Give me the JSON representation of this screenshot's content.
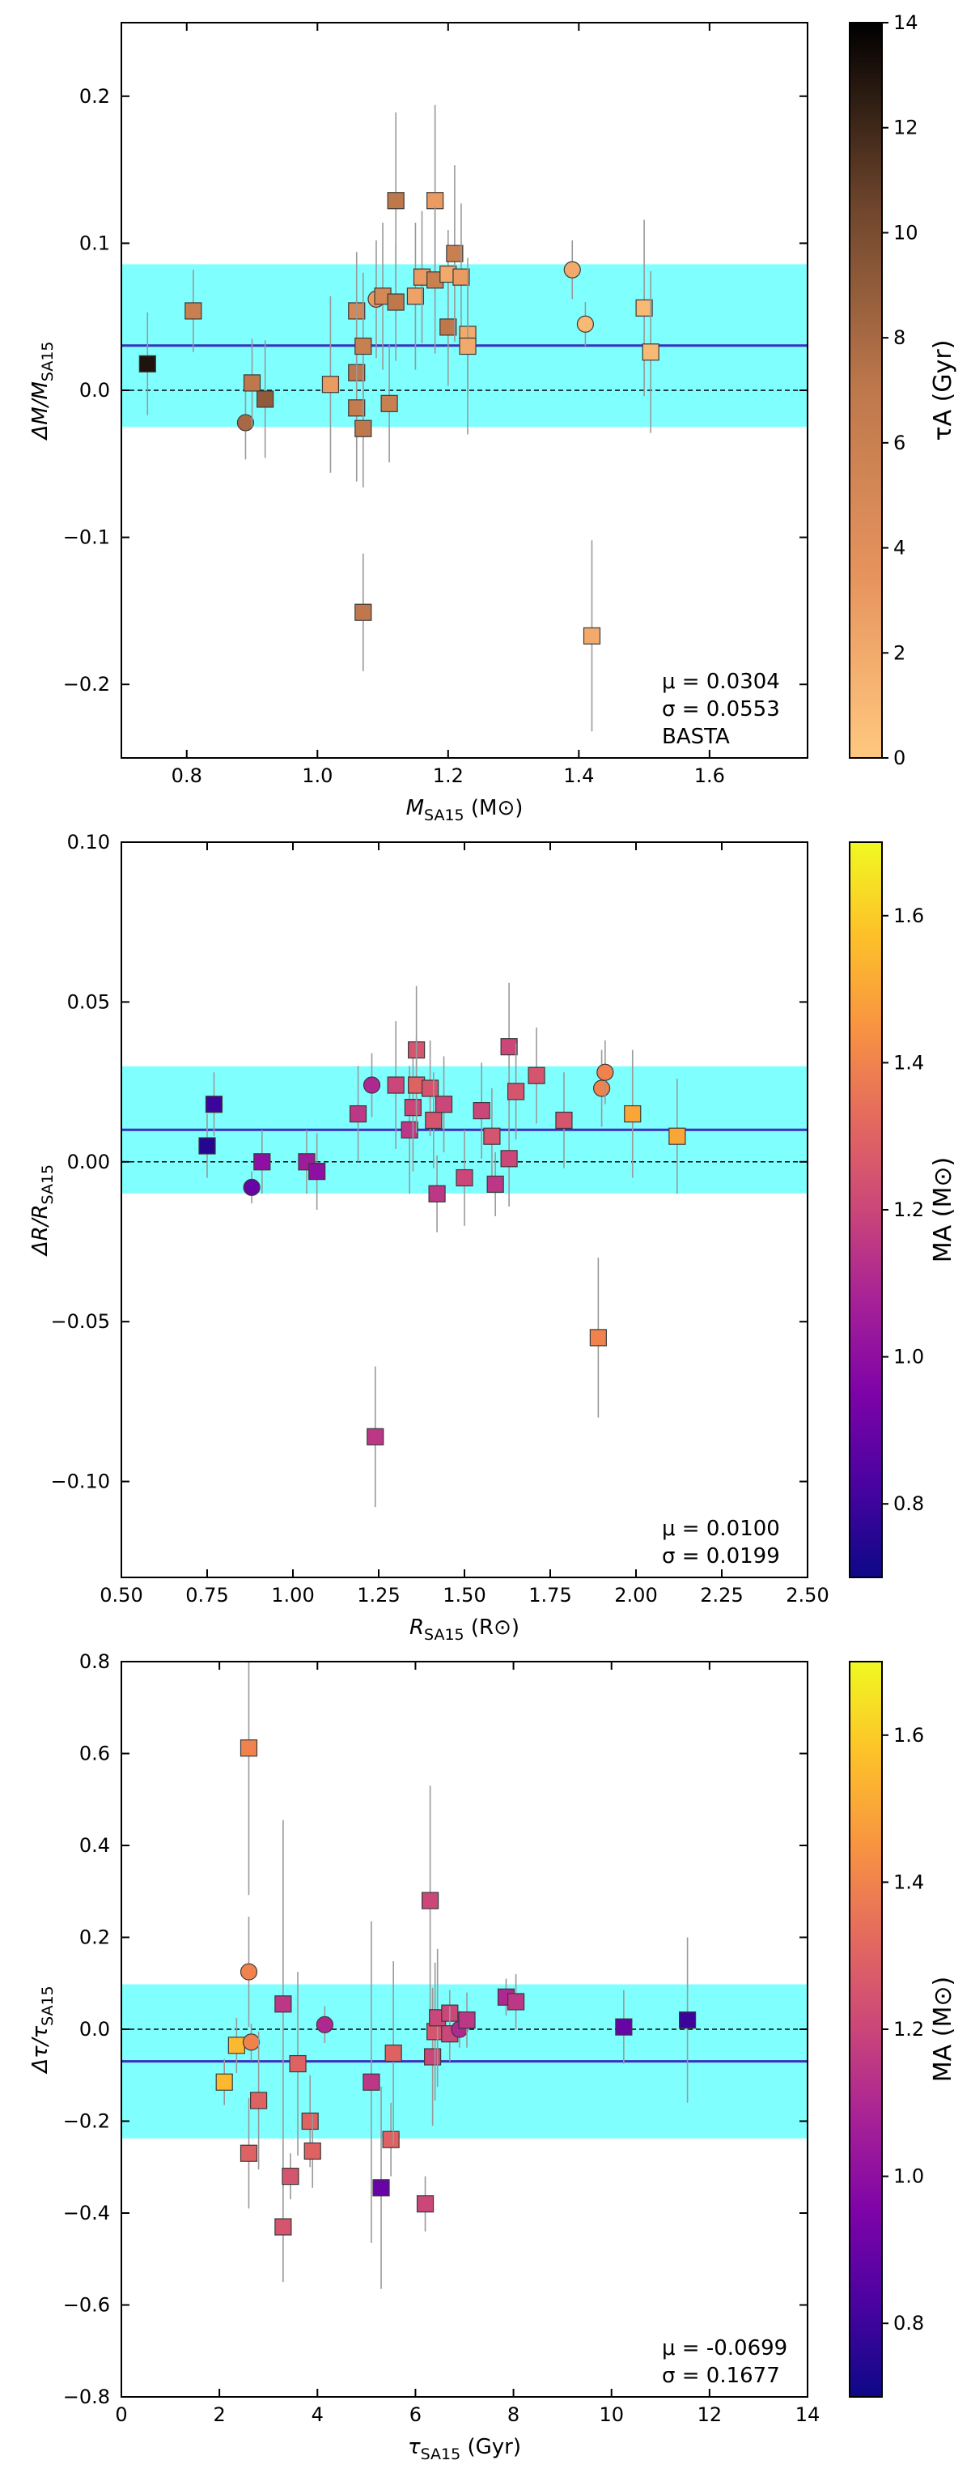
{
  "figure": {
    "background": "#ffffff",
    "band_color": "#80ffff",
    "mean_line_color": "#3a2fbf",
    "errorbar_color": "#999999"
  },
  "chart_data": [
    {
      "type": "scatter",
      "title": "",
      "xlabel": "M_SA15 (M⊙)",
      "ylabel": "ΔM/M_SA15",
      "xlim": [
        0.7,
        1.75
      ],
      "ylim": [
        -0.25,
        0.25
      ],
      "xticks": [
        0.8,
        1.0,
        1.2,
        1.4,
        1.6
      ],
      "xtick_labels": [
        "0.8",
        "1.0",
        "1.2",
        "1.4",
        "1.6"
      ],
      "yticks": [
        -0.2,
        -0.1,
        0.0,
        0.1,
        0.2
      ],
      "ytick_labels": [
        "−0.2",
        "−0.1",
        "0.0",
        "0.1",
        "0.2"
      ],
      "mean": 0.0304,
      "sigma": 0.0553,
      "band": [
        -0.0249,
        0.0857
      ],
      "annotation": [
        "μ = 0.0304",
        "σ = 0.0553",
        "BASTA"
      ],
      "colorbar": {
        "label": "τA (Gyr)",
        "range": [
          0,
          14
        ],
        "ticks": [
          0,
          2,
          4,
          6,
          8,
          10,
          12,
          14
        ],
        "tick_labels": [
          "0",
          "2",
          "4",
          "6",
          "8",
          "10",
          "12",
          "14"
        ],
        "colormap": "copper-reversed"
      },
      "points": [
        {
          "x": 0.74,
          "y": 0.018,
          "err": 0.035,
          "marker": "square",
          "c": 13.0
        },
        {
          "x": 0.81,
          "y": 0.054,
          "err": 0.028,
          "marker": "square",
          "c": 6.0
        },
        {
          "x": 0.89,
          "y": -0.022,
          "err": 0.025,
          "marker": "circle",
          "c": 8.0
        },
        {
          "x": 0.9,
          "y": 0.005,
          "err": 0.03,
          "marker": "square",
          "c": 7.0
        },
        {
          "x": 0.92,
          "y": -0.006,
          "err": 0.04,
          "marker": "square",
          "c": 9.0
        },
        {
          "x": 1.02,
          "y": 0.004,
          "err": 0.06,
          "marker": "square",
          "c": 3.0
        },
        {
          "x": 1.06,
          "y": 0.054,
          "err": 0.04,
          "marker": "square",
          "c": 5.0
        },
        {
          "x": 1.06,
          "y": 0.012,
          "err": 0.05,
          "marker": "square",
          "c": 7.0
        },
        {
          "x": 1.06,
          "y": -0.012,
          "err": 0.05,
          "marker": "square",
          "c": 6.5
        },
        {
          "x": 1.07,
          "y": 0.03,
          "err": 0.05,
          "marker": "square",
          "c": 6.0
        },
        {
          "x": 1.07,
          "y": -0.026,
          "err": 0.04,
          "marker": "square",
          "c": 7.0
        },
        {
          "x": 1.07,
          "y": -0.151,
          "err": 0.04,
          "marker": "square",
          "c": 7.0
        },
        {
          "x": 1.09,
          "y": 0.062,
          "err": 0.04,
          "marker": "circle",
          "c": 3.0
        },
        {
          "x": 1.1,
          "y": 0.064,
          "err": 0.05,
          "marker": "square",
          "c": 5.0
        },
        {
          "x": 1.11,
          "y": -0.009,
          "err": 0.04,
          "marker": "square",
          "c": 6.0
        },
        {
          "x": 1.12,
          "y": 0.129,
          "err": 0.06,
          "marker": "square",
          "c": 7.0
        },
        {
          "x": 1.12,
          "y": 0.06,
          "err": 0.04,
          "marker": "square",
          "c": 7.0
        },
        {
          "x": 1.15,
          "y": 0.064,
          "err": 0.05,
          "marker": "square",
          "c": 2.5
        },
        {
          "x": 1.16,
          "y": 0.077,
          "err": 0.045,
          "marker": "square",
          "c": 3.0
        },
        {
          "x": 1.18,
          "y": 0.129,
          "err": 0.065,
          "marker": "square",
          "c": 3.0
        },
        {
          "x": 1.18,
          "y": 0.075,
          "err": 0.05,
          "marker": "square",
          "c": 6.0
        },
        {
          "x": 1.2,
          "y": 0.043,
          "err": 0.04,
          "marker": "square",
          "c": 7.0
        },
        {
          "x": 1.2,
          "y": 0.079,
          "err": 0.03,
          "marker": "square",
          "c": 2.0
        },
        {
          "x": 1.21,
          "y": 0.093,
          "err": 0.06,
          "marker": "square",
          "c": 6.0
        },
        {
          "x": 1.22,
          "y": 0.077,
          "err": 0.05,
          "marker": "square",
          "c": 3.0
        },
        {
          "x": 1.23,
          "y": 0.038,
          "err": 0.04,
          "marker": "square",
          "c": 2.0
        },
        {
          "x": 1.23,
          "y": 0.03,
          "err": 0.06,
          "marker": "square",
          "c": 2.0
        },
        {
          "x": 1.39,
          "y": 0.082,
          "err": 0.02,
          "marker": "circle",
          "c": 2.0
        },
        {
          "x": 1.41,
          "y": 0.045,
          "err": 0.015,
          "marker": "circle",
          "c": 1.0
        },
        {
          "x": 1.42,
          "y": -0.167,
          "err": 0.065,
          "marker": "square",
          "c": 2.0
        },
        {
          "x": 1.5,
          "y": 0.056,
          "err": 0.06,
          "marker": "square",
          "c": 1.0
        },
        {
          "x": 1.51,
          "y": 0.026,
          "err": 0.055,
          "marker": "square",
          "c": 1.0
        }
      ]
    },
    {
      "type": "scatter",
      "title": "",
      "xlabel": "R_SA15 (R⊙)",
      "ylabel": "ΔR/R_SA15",
      "xlim": [
        0.5,
        2.5
      ],
      "ylim": [
        -0.13,
        0.1
      ],
      "xticks": [
        0.5,
        0.75,
        1.0,
        1.25,
        1.5,
        1.75,
        2.0,
        2.25,
        2.5
      ],
      "xtick_labels": [
        "0.50",
        "0.75",
        "1.00",
        "1.25",
        "1.50",
        "1.75",
        "2.00",
        "2.25",
        "2.50"
      ],
      "yticks": [
        -0.1,
        -0.05,
        0.0,
        0.05,
        0.1
      ],
      "ytick_labels": [
        "−0.10",
        "−0.05",
        "0.00",
        "0.05",
        "0.10"
      ],
      "mean": 0.01,
      "sigma": 0.0199,
      "band": [
        -0.0099,
        0.0299
      ],
      "annotation": [
        "μ = 0.0100",
        "σ = 0.0199"
      ],
      "colorbar": {
        "label": "MA (M⊙)",
        "range": [
          0.7,
          1.7
        ],
        "ticks": [
          0.8,
          1.0,
          1.2,
          1.4,
          1.6
        ],
        "tick_labels": [
          "0.8",
          "1.0",
          "1.2",
          "1.4",
          "1.6"
        ],
        "colormap": "plasma"
      },
      "points": [
        {
          "x": 0.75,
          "y": 0.005,
          "err": 0.01,
          "marker": "square",
          "c": 0.75
        },
        {
          "x": 0.77,
          "y": 0.018,
          "err": 0.01,
          "marker": "square",
          "c": 0.8
        },
        {
          "x": 0.88,
          "y": -0.008,
          "err": 0.005,
          "marker": "circle",
          "c": 0.9
        },
        {
          "x": 0.91,
          "y": 0.0,
          "err": 0.01,
          "marker": "square",
          "c": 1.0
        },
        {
          "x": 1.04,
          "y": 0.0,
          "err": 0.01,
          "marker": "square",
          "c": 1.05
        },
        {
          "x": 1.07,
          "y": -0.003,
          "err": 0.012,
          "marker": "square",
          "c": 1.0
        },
        {
          "x": 1.19,
          "y": 0.015,
          "err": 0.015,
          "marker": "square",
          "c": 1.15
        },
        {
          "x": 1.23,
          "y": 0.024,
          "err": 0.01,
          "marker": "circle",
          "c": 1.1
        },
        {
          "x": 1.24,
          "y": -0.086,
          "err": 0.022,
          "marker": "square",
          "c": 1.15
        },
        {
          "x": 1.3,
          "y": 0.024,
          "err": 0.02,
          "marker": "square",
          "c": 1.2
        },
        {
          "x": 1.34,
          "y": 0.01,
          "err": 0.02,
          "marker": "square",
          "c": 1.15
        },
        {
          "x": 1.35,
          "y": 0.017,
          "err": 0.02,
          "marker": "square",
          "c": 1.2
        },
        {
          "x": 1.36,
          "y": 0.035,
          "err": 0.02,
          "marker": "square",
          "c": 1.25
        },
        {
          "x": 1.36,
          "y": 0.024,
          "err": 0.015,
          "marker": "square",
          "c": 1.3
        },
        {
          "x": 1.4,
          "y": 0.023,
          "err": 0.015,
          "marker": "square",
          "c": 1.25
        },
        {
          "x": 1.41,
          "y": 0.013,
          "err": 0.015,
          "marker": "square",
          "c": 1.25
        },
        {
          "x": 1.42,
          "y": -0.01,
          "err": 0.012,
          "marker": "square",
          "c": 1.15
        },
        {
          "x": 1.44,
          "y": 0.018,
          "err": 0.015,
          "marker": "square",
          "c": 1.2
        },
        {
          "x": 1.5,
          "y": -0.005,
          "err": 0.015,
          "marker": "square",
          "c": 1.2
        },
        {
          "x": 1.55,
          "y": 0.016,
          "err": 0.015,
          "marker": "square",
          "c": 1.2
        },
        {
          "x": 1.58,
          "y": 0.008,
          "err": 0.015,
          "marker": "square",
          "c": 1.25
        },
        {
          "x": 1.59,
          "y": -0.007,
          "err": 0.01,
          "marker": "square",
          "c": 1.15
        },
        {
          "x": 1.63,
          "y": 0.036,
          "err": 0.02,
          "marker": "square",
          "c": 1.2
        },
        {
          "x": 1.63,
          "y": 0.001,
          "err": 0.015,
          "marker": "square",
          "c": 1.2
        },
        {
          "x": 1.65,
          "y": 0.022,
          "err": 0.015,
          "marker": "square",
          "c": 1.25
        },
        {
          "x": 1.71,
          "y": 0.027,
          "err": 0.015,
          "marker": "square",
          "c": 1.25
        },
        {
          "x": 1.79,
          "y": 0.013,
          "err": 0.015,
          "marker": "square",
          "c": 1.25
        },
        {
          "x": 1.89,
          "y": -0.055,
          "err": 0.025,
          "marker": "square",
          "c": 1.4
        },
        {
          "x": 1.9,
          "y": 0.023,
          "err": 0.012,
          "marker": "circle",
          "c": 1.4
        },
        {
          "x": 1.91,
          "y": 0.028,
          "err": 0.01,
          "marker": "circle",
          "c": 1.4
        },
        {
          "x": 1.99,
          "y": 0.015,
          "err": 0.02,
          "marker": "square",
          "c": 1.5
        },
        {
          "x": 2.12,
          "y": 0.008,
          "err": 0.018,
          "marker": "square",
          "c": 1.5
        }
      ]
    },
    {
      "type": "scatter",
      "title": "",
      "xlabel": "τ_SA15 (Gyr)",
      "ylabel": "Δτ/τ_SA15",
      "xlim": [
        0,
        14
      ],
      "ylim": [
        -0.8,
        0.8
      ],
      "xticks": [
        0,
        2,
        4,
        6,
        8,
        10,
        12,
        14
      ],
      "xtick_labels": [
        "0",
        "2",
        "4",
        "6",
        "8",
        "10",
        "12",
        "14"
      ],
      "yticks": [
        -0.8,
        -0.6,
        -0.4,
        -0.2,
        0.0,
        0.2,
        0.4,
        0.6,
        0.8
      ],
      "ytick_labels": [
        "−0.8",
        "−0.6",
        "−0.4",
        "−0.2",
        "0.0",
        "0.2",
        "0.4",
        "0.6",
        "0.8"
      ],
      "mean": -0.0699,
      "sigma": 0.1677,
      "band": [
        -0.2376,
        0.0978
      ],
      "annotation": [
        "μ = -0.0699",
        "σ = 0.1677"
      ],
      "colorbar": {
        "label": "MA (M⊙)",
        "range": [
          0.7,
          1.7
        ],
        "ticks": [
          0.8,
          1.0,
          1.2,
          1.4,
          1.6
        ],
        "tick_labels": [
          "0.8",
          "1.0",
          "1.2",
          "1.4",
          "1.6"
        ],
        "colormap": "plasma"
      },
      "points": [
        {
          "x": 2.1,
          "y": -0.115,
          "err": 0.05,
          "marker": "square",
          "c": 1.55
        },
        {
          "x": 2.35,
          "y": -0.035,
          "err": 0.06,
          "marker": "square",
          "c": 1.55
        },
        {
          "x": 2.6,
          "y": 0.612,
          "err": 0.32,
          "marker": "square",
          "c": 1.4
        },
        {
          "x": 2.6,
          "y": 0.125,
          "err": 0.12,
          "marker": "circle",
          "c": 1.4
        },
        {
          "x": 2.6,
          "y": -0.27,
          "err": 0.12,
          "marker": "square",
          "c": 1.3
        },
        {
          "x": 2.65,
          "y": -0.028,
          "err": 0.04,
          "marker": "circle",
          "c": 1.4
        },
        {
          "x": 2.8,
          "y": -0.155,
          "err": 0.15,
          "marker": "square",
          "c": 1.3
        },
        {
          "x": 3.3,
          "y": 0.055,
          "err": 0.4,
          "marker": "square",
          "c": 1.15
        },
        {
          "x": 3.3,
          "y": -0.43,
          "err": 0.12,
          "marker": "square",
          "c": 1.25
        },
        {
          "x": 3.45,
          "y": -0.32,
          "err": 0.05,
          "marker": "square",
          "c": 1.25
        },
        {
          "x": 3.6,
          "y": -0.075,
          "err": 0.2,
          "marker": "square",
          "c": 1.3
        },
        {
          "x": 3.85,
          "y": -0.2,
          "err": 0.1,
          "marker": "square",
          "c": 1.3
        },
        {
          "x": 3.9,
          "y": -0.265,
          "err": 0.08,
          "marker": "square",
          "c": 1.3
        },
        {
          "x": 4.15,
          "y": 0.01,
          "err": 0.04,
          "marker": "circle",
          "c": 1.1
        },
        {
          "x": 5.1,
          "y": -0.115,
          "err": 0.35,
          "marker": "square",
          "c": 1.15
        },
        {
          "x": 5.3,
          "y": -0.345,
          "err": 0.22,
          "marker": "square",
          "c": 0.9
        },
        {
          "x": 5.5,
          "y": -0.24,
          "err": 0.08,
          "marker": "square",
          "c": 1.3
        },
        {
          "x": 5.55,
          "y": -0.052,
          "err": 0.2,
          "marker": "square",
          "c": 1.3
        },
        {
          "x": 6.2,
          "y": -0.38,
          "err": 0.06,
          "marker": "square",
          "c": 1.2
        },
        {
          "x": 6.3,
          "y": 0.28,
          "err": 0.25,
          "marker": "square",
          "c": 1.2
        },
        {
          "x": 6.35,
          "y": -0.06,
          "err": 0.15,
          "marker": "square",
          "c": 1.2
        },
        {
          "x": 6.4,
          "y": -0.005,
          "err": 0.15,
          "marker": "square",
          "c": 1.25
        },
        {
          "x": 6.45,
          "y": 0.025,
          "err": 0.15,
          "marker": "square",
          "c": 1.2
        },
        {
          "x": 6.7,
          "y": 0.035,
          "err": 0.05,
          "marker": "square",
          "c": 1.2
        },
        {
          "x": 6.7,
          "y": -0.01,
          "err": 0.06,
          "marker": "square",
          "c": 1.2
        },
        {
          "x": 6.9,
          "y": 0.0,
          "err": 0.04,
          "marker": "circle",
          "c": 1.1
        },
        {
          "x": 7.05,
          "y": 0.02,
          "err": 0.06,
          "marker": "square",
          "c": 1.15
        },
        {
          "x": 7.85,
          "y": 0.07,
          "err": 0.04,
          "marker": "square",
          "c": 1.1
        },
        {
          "x": 8.05,
          "y": 0.06,
          "err": 0.06,
          "marker": "square",
          "c": 1.15
        },
        {
          "x": 10.25,
          "y": 0.005,
          "err": 0.08,
          "marker": "square",
          "c": 0.9
        },
        {
          "x": 11.55,
          "y": 0.02,
          "err": 0.18,
          "marker": "square",
          "c": 0.8
        }
      ]
    }
  ]
}
